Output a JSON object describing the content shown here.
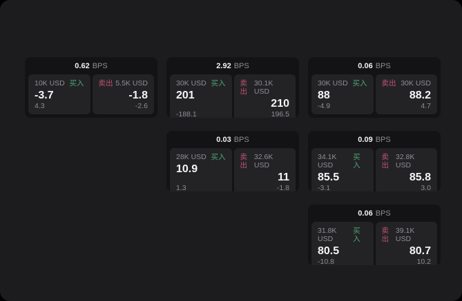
{
  "labels": {
    "buy": "买入",
    "sell": "卖出",
    "bps": "BPS"
  },
  "colors": {
    "window_bg": "#1c1c1e",
    "card_bg": "#131315",
    "panel_bg": "#232326",
    "muted_text": "#8e8e93",
    "buy_green": "#4ea672",
    "sell_red": "#bf5270"
  },
  "cards": [
    {
      "col": 1,
      "row": 1,
      "bps_value": "0.62",
      "buy": {
        "amount": "10K USD",
        "value": "-3.7",
        "sub": "4.3"
      },
      "sell": {
        "amount": "5.5K USD",
        "value": "-1.8",
        "sub": "-2.6"
      }
    },
    {
      "col": 2,
      "row": 1,
      "bps_value": "2.92",
      "buy": {
        "amount": "30K USD",
        "value": "201",
        "sub": "-188.1"
      },
      "sell": {
        "amount": "30.1K USD",
        "value": "210",
        "sub": "196.5"
      }
    },
    {
      "col": 3,
      "row": 1,
      "bps_value": "0.06",
      "buy": {
        "amount": "30K USD",
        "value": "88",
        "sub": "-4.9"
      },
      "sell": {
        "amount": "30K USD",
        "value": "88.2",
        "sub": "4.7"
      }
    },
    {
      "col": 2,
      "row": 2,
      "bps_value": "0.03",
      "buy": {
        "amount": "28K USD",
        "value": "10.9",
        "sub": "1.3"
      },
      "sell": {
        "amount": "32.6K USD",
        "value": "11",
        "sub": "-1.8"
      }
    },
    {
      "col": 3,
      "row": 2,
      "bps_value": "0.09",
      "buy": {
        "amount": "34.1K USD",
        "value": "85.5",
        "sub": "-3.1"
      },
      "sell": {
        "amount": "32.8K USD",
        "value": "85.8",
        "sub": "3.0"
      }
    },
    {
      "col": 3,
      "row": 3,
      "bps_value": "0.06",
      "buy": {
        "amount": "31.8K USD",
        "value": "80.5",
        "sub": "-10.8"
      },
      "sell": {
        "amount": "39.1K USD",
        "value": "80.7",
        "sub": "10.2"
      }
    }
  ]
}
